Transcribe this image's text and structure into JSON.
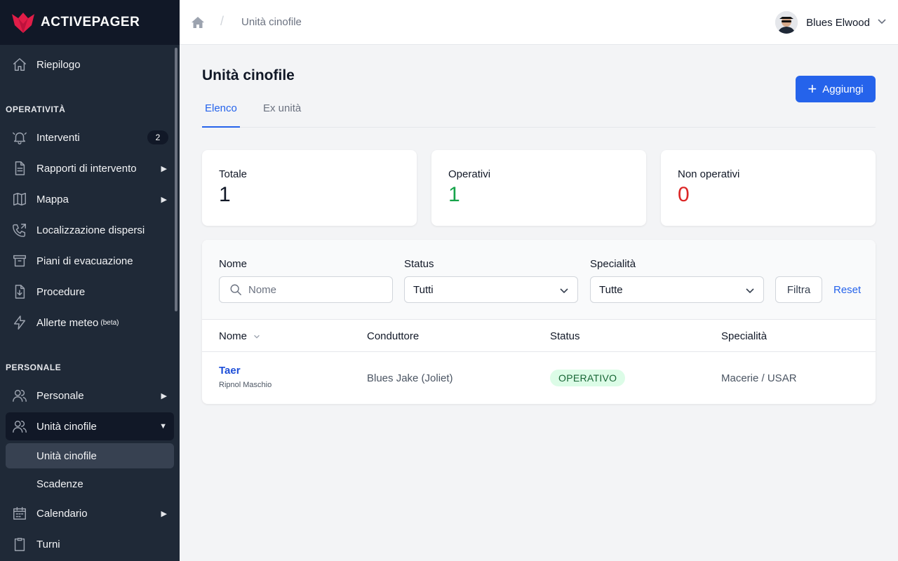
{
  "brand": {
    "name": "ACTIVEPAGER",
    "color": "#e11d48"
  },
  "sidebar": {
    "top_item": {
      "label": "Riepilogo",
      "icon": "home-icon"
    },
    "sections": [
      {
        "title": "OPERATIVITÀ",
        "items": [
          {
            "label": "Interventi",
            "icon": "bell-icon",
            "badge": "2"
          },
          {
            "label": "Rapporti di intervento",
            "icon": "document-icon",
            "arrow": "▶"
          },
          {
            "label": "Mappa",
            "icon": "map-icon",
            "arrow": "▶"
          },
          {
            "label": "Localizzazione dispersi",
            "icon": "phone-icon"
          },
          {
            "label": "Piani di evacuazione",
            "icon": "archive-icon"
          },
          {
            "label": "Procedure",
            "icon": "download-doc-icon"
          },
          {
            "label": "Allerte meteo",
            "suffix": "(beta)",
            "icon": "bolt-icon"
          }
        ]
      },
      {
        "title": "PERSONALE",
        "items": [
          {
            "label": "Personale",
            "icon": "users-icon",
            "arrow": "▶"
          },
          {
            "label": "Unità cinofile",
            "icon": "users-icon",
            "arrow": "▼",
            "active": true,
            "children": [
              {
                "label": "Unità cinofile",
                "active": true
              },
              {
                "label": "Scadenze"
              }
            ]
          },
          {
            "label": "Calendario",
            "icon": "calendar-icon",
            "arrow": "▶"
          },
          {
            "label": "Turni",
            "icon": "clipboard-icon"
          }
        ]
      }
    ]
  },
  "header": {
    "breadcrumb_sep": "/",
    "breadcrumb": "Unità cinofile",
    "user_name": "Blues Elwood"
  },
  "main": {
    "title": "Unità cinofile",
    "add_button": "Aggiungi",
    "tabs": [
      {
        "label": "Elenco",
        "active": true
      },
      {
        "label": "Ex unità"
      }
    ],
    "stats": [
      {
        "label": "Totale",
        "value": "1",
        "color": "#111827"
      },
      {
        "label": "Operativi",
        "value": "1",
        "color": "#16a34a"
      },
      {
        "label": "Non operativi",
        "value": "0",
        "color": "#dc2626"
      }
    ],
    "filters": {
      "name_label": "Nome",
      "name_placeholder": "Nome",
      "status_label": "Status",
      "status_value": "Tutti",
      "specialty_label": "Specialità",
      "specialty_value": "Tutte",
      "filter_button": "Filtra",
      "reset_link": "Reset"
    },
    "table": {
      "columns": [
        "Nome",
        "Conduttore",
        "Status",
        "Specialità"
      ],
      "rows": [
        {
          "name": "Taer",
          "sub": "Ripnol Maschio",
          "handler": "Blues Jake (Joliet)",
          "status": "OPERATIVO",
          "specialty": "Macerie / USAR"
        }
      ]
    }
  }
}
